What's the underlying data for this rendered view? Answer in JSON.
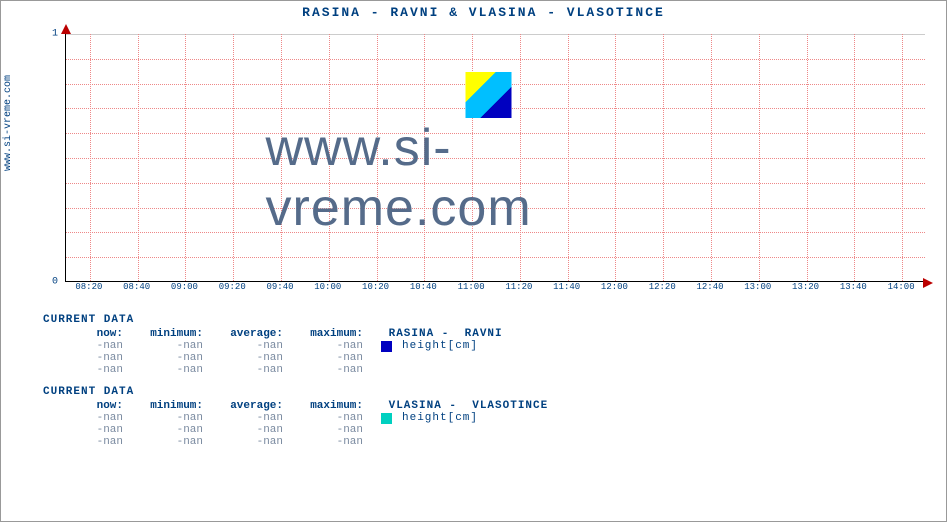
{
  "sidelabel": "www.si-vreme.com",
  "title": " RASINA -  RAVNI &  VLASINA -  VLASOTINCE",
  "chart": {
    "type": "line",
    "title_fontsize": 13,
    "title_color": "#004080",
    "label_fontsize": 10,
    "tick_fontsize": 9,
    "tick_color": "#004080",
    "background_color": "#ffffff",
    "axis_color": "#000000",
    "arrow_color": "#bb0000",
    "grid_major_color": "#cccccc",
    "grid_dotted_color": "#ee8888",
    "ylim": [
      0,
      1
    ],
    "yticks": [
      0,
      1
    ],
    "y_minor_step": 0.1,
    "xticks": [
      "08:20",
      "08:40",
      "09:00",
      "09:20",
      "09:40",
      "10:00",
      "10:20",
      "10:40",
      "11:00",
      "11:20",
      "11:40",
      "12:00",
      "12:20",
      "12:40",
      "13:00",
      "13:20",
      "13:40",
      "14:00"
    ],
    "watermark_text": "www.si-vreme.com",
    "watermark_color": "#556b8a",
    "watermark_fontsize": 52,
    "series": []
  },
  "blocks": [
    {
      "heading": "CURRENT DATA",
      "headers": [
        "now:",
        "minimum:",
        "average:",
        "maximum:"
      ],
      "series_name": " RASINA -  RAVNI",
      "swatch_color": "#0000c0",
      "metric": "height[cm]",
      "rows": [
        [
          "-nan",
          "-nan",
          "-nan",
          "-nan"
        ],
        [
          "-nan",
          "-nan",
          "-nan",
          "-nan"
        ],
        [
          "-nan",
          "-nan",
          "-nan",
          "-nan"
        ]
      ]
    },
    {
      "heading": "CURRENT DATA",
      "headers": [
        "now:",
        "minimum:",
        "average:",
        "maximum:"
      ],
      "series_name": " VLASINA -  VLASOTINCE",
      "swatch_color": "#00d0c0",
      "metric": "height[cm]",
      "rows": [
        [
          "-nan",
          "-nan",
          "-nan",
          "-nan"
        ],
        [
          "-nan",
          "-nan",
          "-nan",
          "-nan"
        ],
        [
          "-nan",
          "-nan",
          "-nan",
          "-nan"
        ]
      ]
    }
  ]
}
